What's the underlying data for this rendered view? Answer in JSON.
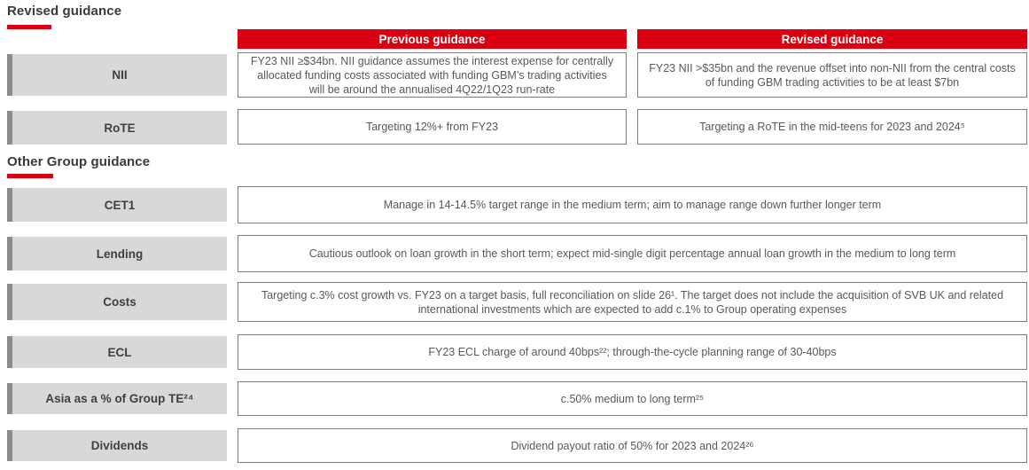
{
  "colors": {
    "brand_red": "#db0011",
    "label_box_bg": "#d8d8d8",
    "label_box_accent": "#8a8a8a",
    "cell_border": "#7c7c7c",
    "cell_text": "#58595b",
    "heading_text": "#3a3a3a"
  },
  "sections": {
    "revised": {
      "title": "Revised guidance",
      "columns": {
        "previous": "Previous guidance",
        "revised": "Revised guidance"
      },
      "rows": [
        {
          "label": "NII",
          "previous": "FY23 NII ≥$34bn. NII guidance assumes the interest expense for centrally allocated funding costs associated with funding GBM’s trading activities will be around the annualised 4Q22/1Q23 run-rate",
          "revised": "FY23 NII >$35bn and the revenue offset into non-NII from the central costs of funding GBM trading activities to be at least $7bn"
        },
        {
          "label": "RoTE",
          "previous": "Targeting 12%+ from FY23",
          "revised": "Targeting a RoTE in the mid-teens for 2023 and 2024⁵"
        }
      ]
    },
    "other": {
      "title": "Other Group guidance",
      "rows": [
        {
          "label": "CET1",
          "text": "Manage in 14-14.5% target range in the medium term; aim to manage range down further longer term"
        },
        {
          "label": "Lending",
          "text": "Cautious outlook on loan growth in the short term; expect mid-single digit percentage annual loan growth in the medium to long term"
        },
        {
          "label": "Costs",
          "text": "Targeting c.3% cost growth vs. FY23 on a target basis, full reconciliation on slide 26¹. The target does not include the acquisition of SVB UK and related international investments which are expected to add c.1% to Group operating expenses"
        },
        {
          "label": "ECL",
          "text": "FY23 ECL charge of around 40bps²²; through-the-cycle planning range of 30-40bps"
        },
        {
          "label": "Asia as a % of Group TE²⁴",
          "text": "c.50% medium to long term²⁵"
        },
        {
          "label": "Dividends",
          "text": "Dividend payout ratio of 50% for 2023 and 2024²⁶"
        }
      ]
    }
  }
}
